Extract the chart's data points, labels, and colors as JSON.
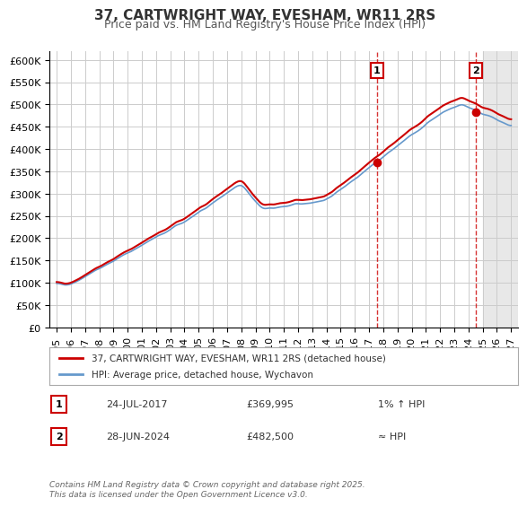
{
  "title": "37, CARTWRIGHT WAY, EVESHAM, WR11 2RS",
  "subtitle": "Price paid vs. HM Land Registry's House Price Index (HPI)",
  "legend_line1": "37, CARTWRIGHT WAY, EVESHAM, WR11 2RS (detached house)",
  "legend_line2": "HPI: Average price, detached house, Wychavon",
  "annotation1_label": "1",
  "annotation1_date": "24-JUL-2017",
  "annotation1_price": "£369,995",
  "annotation1_hpi": "1% ↑ HPI",
  "annotation2_label": "2",
  "annotation2_date": "28-JUN-2024",
  "annotation2_price": "£482,500",
  "annotation2_hpi": "≈ HPI",
  "footnote": "Contains HM Land Registry data © Crown copyright and database right 2025.\nThis data is licensed under the Open Government Licence v3.0.",
  "xlim": [
    1994.5,
    2027.5
  ],
  "ylim": [
    0,
    620000
  ],
  "yticks": [
    0,
    50000,
    100000,
    150000,
    200000,
    250000,
    300000,
    350000,
    400000,
    450000,
    500000,
    550000,
    600000
  ],
  "ytick_labels": [
    "£0",
    "£50K",
    "£100K",
    "£150K",
    "£200K",
    "£250K",
    "£300K",
    "£350K",
    "£400K",
    "£450K",
    "£500K",
    "£550K",
    "£600K"
  ],
  "xticks": [
    1995,
    1996,
    1997,
    1998,
    1999,
    2000,
    2001,
    2002,
    2003,
    2004,
    2005,
    2006,
    2007,
    2008,
    2009,
    2010,
    2011,
    2012,
    2013,
    2014,
    2015,
    2016,
    2017,
    2018,
    2019,
    2020,
    2021,
    2022,
    2023,
    2024,
    2025,
    2026,
    2027
  ],
  "line_color": "#cc0000",
  "hpi_line_color": "#6699cc",
  "vline_color": "#cc0000",
  "point1_x": 2017.56,
  "point1_y": 369995,
  "point2_x": 2024.5,
  "point2_y": 482500,
  "background_color": "#f0f0f0",
  "plot_bg_color": "#ffffff",
  "grid_color": "#cccccc",
  "title_fontsize": 11,
  "subtitle_fontsize": 9,
  "axis_fontsize": 8
}
